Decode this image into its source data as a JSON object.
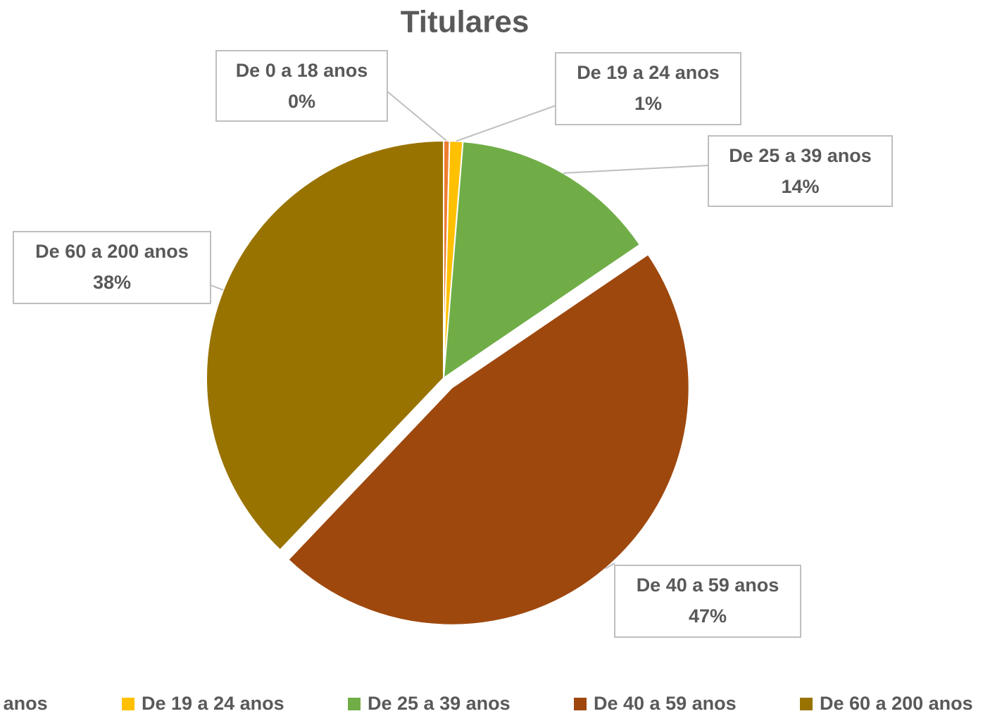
{
  "chart_data": {
    "type": "pie",
    "title": "Titulares",
    "categories": [
      "De 0 a 18 anos",
      "De 19 a 24 anos",
      "De 25 a 39 anos",
      "De 40 a 59 anos",
      "De 60 a 200 anos"
    ],
    "values": [
      0.4,
      0.9,
      14.2,
      46.6,
      37.9
    ],
    "value_labels": [
      "0%",
      "1%",
      "14%",
      "47%",
      "38%"
    ],
    "colors": [
      "#ed7d31",
      "#ffc000",
      "#70ad47",
      "#9e480e",
      "#997300"
    ],
    "exploded": [
      false,
      false,
      false,
      true,
      false
    ],
    "legend": "bottom"
  }
}
